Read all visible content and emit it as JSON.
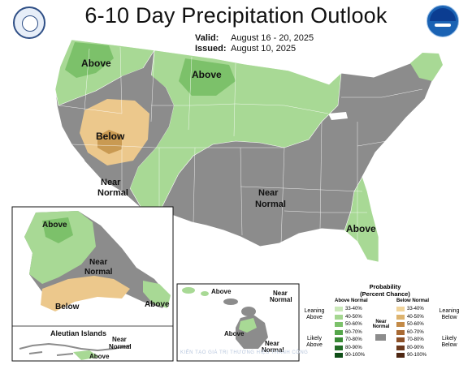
{
  "title": "6-10 Day Precipitation Outlook",
  "valid": {
    "label": "Valid:",
    "value": "August 16 - 20, 2025"
  },
  "issued": {
    "label": "Issued:",
    "value": "August 10, 2025"
  },
  "labels": {
    "conus_above_nw": "Above",
    "conus_above_north": "Above",
    "conus_below_west": "Below",
    "conus_near_normal_west_1": "Near",
    "conus_near_normal_west_2": "Normal",
    "conus_near_normal_central_1": "Near",
    "conus_near_normal_central_2": "Normal",
    "conus_above_southeast": "Above",
    "alaska_above": "Above",
    "alaska_near_1": "Near",
    "alaska_near_2": "Normal",
    "alaska_below": "Below",
    "alaska_above_se": "Above",
    "aleutian_title": "Aleutian Islands",
    "aleutian_near_1": "Near",
    "aleutian_near_2": "Normal",
    "aleutian_above": "Above",
    "hawaii_above_1": "Above",
    "hawaii_near_1": "Near",
    "hawaii_near_2": "Normal",
    "hawaii_above_2": "Above",
    "hawaii_near_3": "Near",
    "hawaii_near_4": "Normal"
  },
  "legend": {
    "title_1": "Probability",
    "title_2": "(Percent Chance)",
    "above_header": "Above Normal",
    "below_header": "Below Normal",
    "near_header_1": "Near",
    "near_header_2": "Normal",
    "above_rows": [
      {
        "label": "33-40%",
        "color": "#c9e8b8"
      },
      {
        "label": "40-50%",
        "color": "#a4d690"
      },
      {
        "label": "50-60%",
        "color": "#7cc16a"
      },
      {
        "label": "60-70%",
        "color": "#55a64a"
      },
      {
        "label": "70-80%",
        "color": "#3a8a36"
      },
      {
        "label": "80-90%",
        "color": "#236d27"
      },
      {
        "label": "90-100%",
        "color": "#0f4e17"
      }
    ],
    "below_rows": [
      {
        "label": "33-40%",
        "color": "#f0d39a"
      },
      {
        "label": "40-50%",
        "color": "#ddb36e"
      },
      {
        "label": "50-60%",
        "color": "#c38a47"
      },
      {
        "label": "60-70%",
        "color": "#a96a33"
      },
      {
        "label": "70-80%",
        "color": "#8c5028"
      },
      {
        "label": "80-90%",
        "color": "#6c391d"
      },
      {
        "label": "90-100%",
        "color": "#4d2612"
      }
    ],
    "near_color": "#8c8c8c",
    "leaning_above": "Leaning Above",
    "likely_above": "Likely Above",
    "leaning_below": "Leaning Below",
    "likely_below": "Likely Below"
  },
  "watermark": {
    "text": "KIẾN TẠO GIÁ TRỊ THƯƠNG HIỆU THÀNH CÔNG"
  },
  "colors": {
    "near_normal": "#8c8c8c",
    "leaning_above": "#a8d995",
    "likely_above": "#7cc16a",
    "leaning_below": "#ecc88c",
    "likely_below": "#c99a52"
  },
  "icons": {
    "left_logo": "commerce-department-seal-icon",
    "right_logo": "noaa-logo-icon"
  }
}
